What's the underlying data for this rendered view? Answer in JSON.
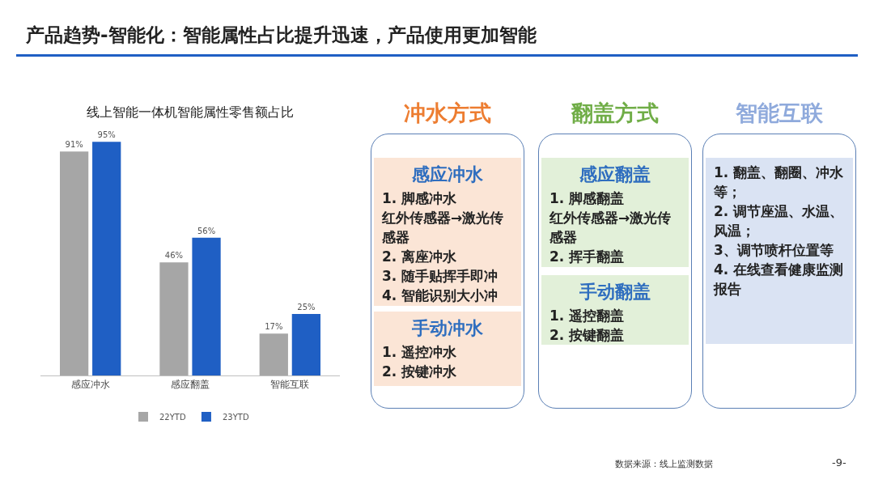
{
  "chart_data": [
    {
      "type": "bar",
      "title": "产品趋势-智能化：智能属性占比提升迅速，产品使用更加智能",
      "subtitle": "线上智能一体机智能属性零售额占比",
      "categories": [
        "感应冲水",
        "感应翻盖",
        "智能互联"
      ],
      "series": [
        {
          "name": "22YTD",
          "color": "#a6a6a6",
          "values": [
            91,
            46,
            17
          ],
          "value_labels": [
            "91%",
            "46%",
            "17%"
          ]
        },
        {
          "name": "23YTD",
          "color": "#1f5fc4",
          "values": [
            95,
            56,
            25
          ],
          "value_labels": [
            "95%",
            "56%",
            "25%"
          ]
        }
      ],
      "legend": "bottom",
      "annotations": [
        "数据来源：线上监测数据",
        "-9-"
      ]
    },
    {
      "type": "other",
      "title": "冲水方式",
      "color": "#ed7d31"
    },
    {
      "type": "other",
      "title": "感应冲水",
      "color": "#fbe5d6",
      "annotations": [
        "1. 脚感冲水",
        "红外传感器→激光传感器",
        "2. 离座冲水",
        "3. 随手贴挥手即冲",
        "4. 智能识别大小冲"
      ]
    },
    {
      "type": "other",
      "title": "手动冲水",
      "color": "#fbe5d6",
      "annotations": [
        "1. 遥控冲水",
        "2. 按键冲水"
      ]
    },
    {
      "type": "other",
      "title": "翻盖方式",
      "color": "#70ad47"
    },
    {
      "type": "other",
      "title": "感应翻盖",
      "color": "#e2f0d9",
      "annotations": [
        "1. 脚感翻盖",
        "红外传感器→激光传感器",
        "2. 挥手翻盖"
      ]
    },
    {
      "type": "other",
      "title": "手动翻盖",
      "color": "#e2f0d9",
      "annotations": [
        "1. 遥控翻盖",
        "2. 按键翻盖"
      ]
    },
    {
      "type": "other",
      "title": "智能互联",
      "color": "#8faadc"
    },
    {
      "type": "other",
      "color": "#dae3f3",
      "annotations": [
        "1. 翻盖、翻圈、冲水等；",
        "2. 调节座温、水温、风温；",
        "3、调节喷杆位置等",
        "4. 在线查看健康监测报告"
      ]
    }
  ]
}
